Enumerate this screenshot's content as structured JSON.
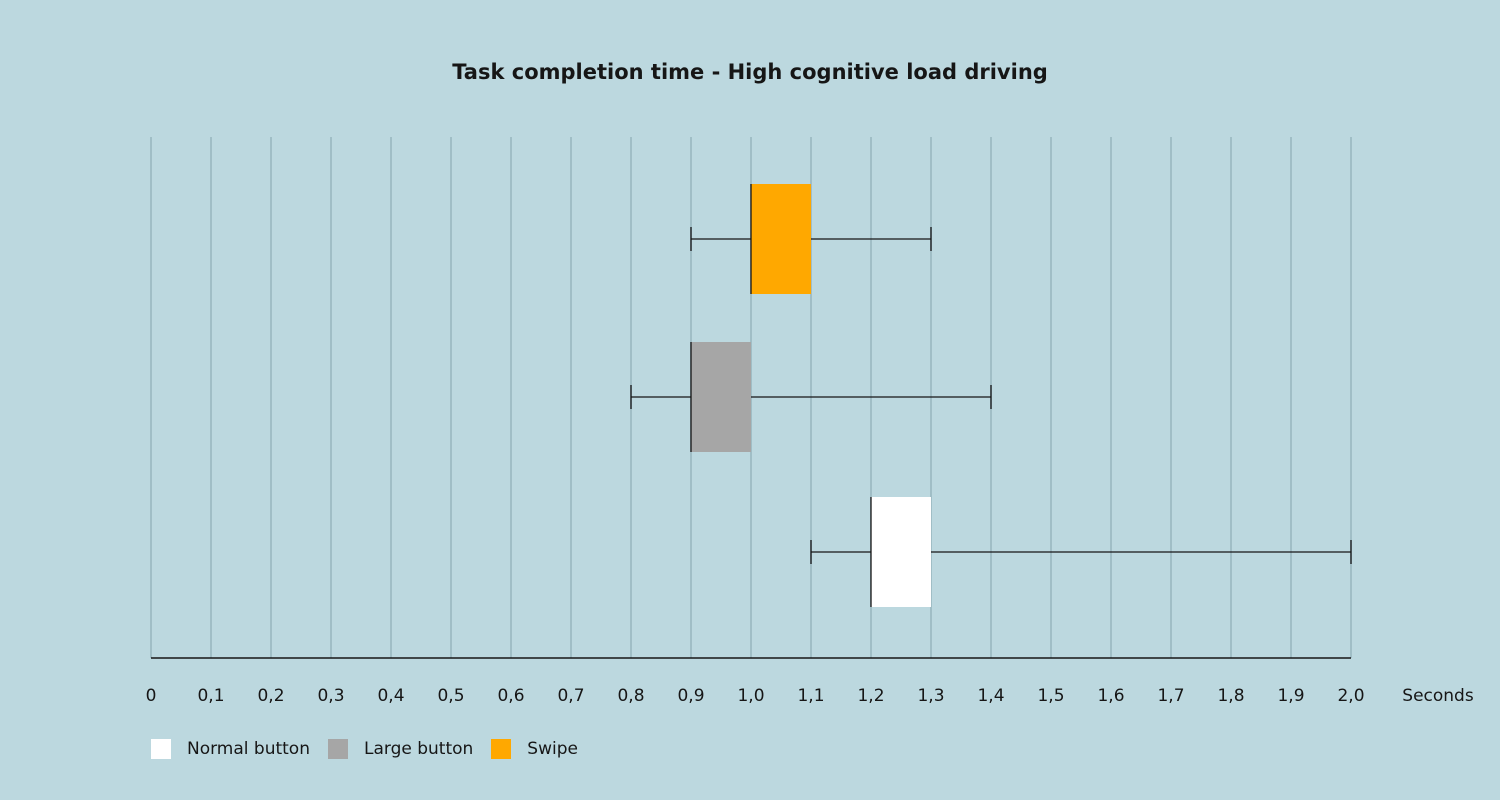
{
  "chart_data": {
    "type": "boxplot",
    "title": "Task completion time - High cognitive load driving",
    "xlabel": "Seconds",
    "xlim": [
      0,
      2.0
    ],
    "xticks": [
      "0",
      "0,1",
      "0,2",
      "0,3",
      "0,4",
      "0,5",
      "0,6",
      "0,7",
      "0,8",
      "0,9",
      "1,0",
      "1,1",
      "1,2",
      "1,3",
      "1,4",
      "1,5",
      "1,6",
      "1,7",
      "1,8",
      "1,9",
      "2,0"
    ],
    "grid": "vertical",
    "legend_position": "bottom-left",
    "series": [
      {
        "name": "Swipe",
        "color": "#ffa800",
        "min": 0.9,
        "q1": 1.0,
        "q3": 1.1,
        "max": 1.3
      },
      {
        "name": "Large button",
        "color": "#a6a6a6",
        "min": 0.8,
        "q1": 0.9,
        "q3": 1.0,
        "max": 1.4
      },
      {
        "name": "Normal button",
        "color": "#ffffff",
        "min": 1.1,
        "q1": 1.2,
        "q3": 1.3,
        "max": 2.0
      }
    ],
    "legend": [
      {
        "name": "Normal button",
        "color": "#ffffff"
      },
      {
        "name": "Large button",
        "color": "#a6a6a6"
      },
      {
        "name": "Swipe",
        "color": "#ffa800"
      }
    ]
  }
}
